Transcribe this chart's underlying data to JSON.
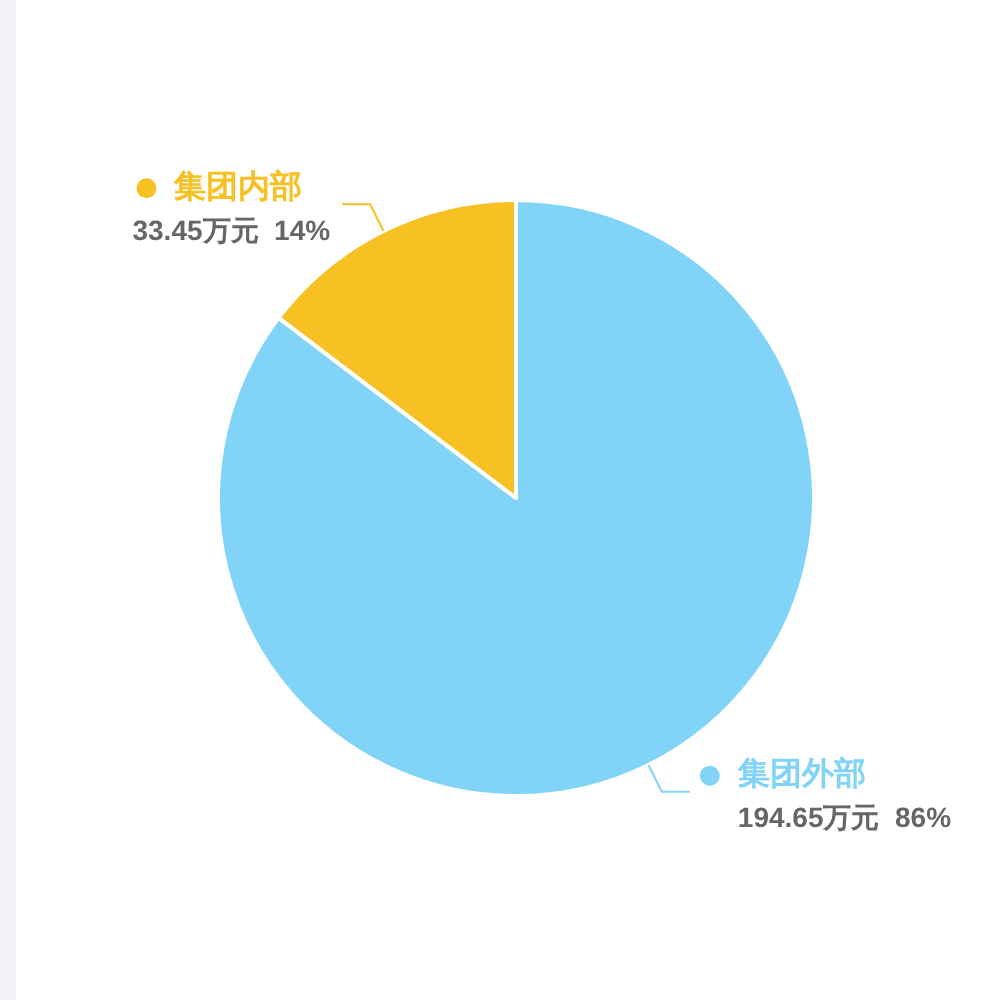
{
  "chart_data": {
    "type": "pie",
    "categories": [
      "集团外部",
      "集团内部"
    ],
    "values": [
      194.65,
      33.45
    ],
    "colors": [
      "#81d4f8",
      "#f7c124"
    ],
    "value_labels": [
      "194.65万元  86%",
      "33.45万元  14%"
    ],
    "legend": "top left"
  }
}
